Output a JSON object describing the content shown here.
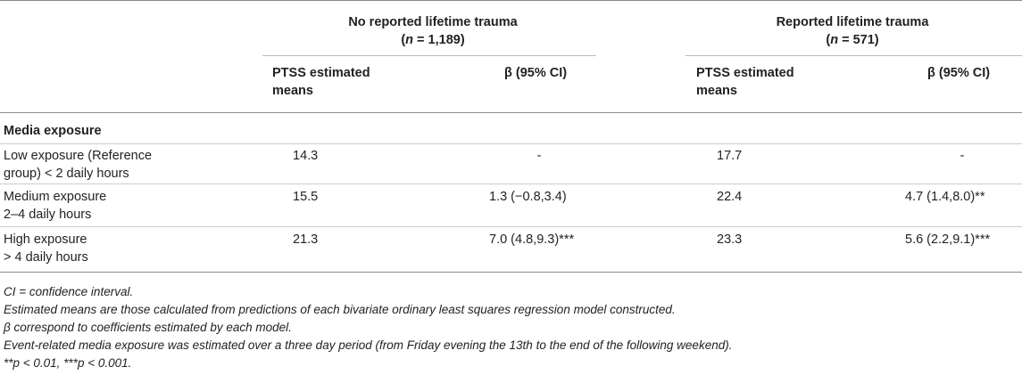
{
  "groups": [
    {
      "title": "No reported lifetime trauma",
      "n_prefix": "(",
      "n_var": "n",
      "n_value": " = 1,189)"
    },
    {
      "title": "Reported lifetime trauma",
      "n_prefix": "(",
      "n_var": "n",
      "n_value": " = 571)"
    }
  ],
  "col_headers": {
    "means": [
      "PTSS estimated",
      "means"
    ],
    "beta": "β (95% CI)"
  },
  "section_label": "Media exposure",
  "rows": [
    {
      "label": [
        "Low exposure (Reference",
        "group) < 2 daily hours"
      ],
      "m1": "14.3",
      "b1": "-",
      "m2": "17.7",
      "b2": "-"
    },
    {
      "label": [
        "Medium exposure",
        "2–4 daily hours"
      ],
      "m1": "15.5",
      "b1": "1.3 (−0.8,3.4)",
      "m2": "22.4",
      "b2": "4.7 (1.4,8.0)**"
    },
    {
      "label": [
        "High exposure",
        "> 4 daily hours"
      ],
      "m1": "21.3",
      "b1": "7.0 (4.8,9.3)***",
      "m2": "23.3",
      "b2": "5.6 (2.2,9.1)***"
    }
  ],
  "notes": [
    "CI = confidence interval.",
    "Estimated means are those calculated from predictions of each bivariate ordinary least squares regression model constructed.",
    "β correspond to coefficients estimated by each model.",
    "Event-related media exposure was estimated over a three day period (from Friday evening the 13th to the end of the following weekend).",
    "**p < 0.01, ***p < 0.001."
  ]
}
